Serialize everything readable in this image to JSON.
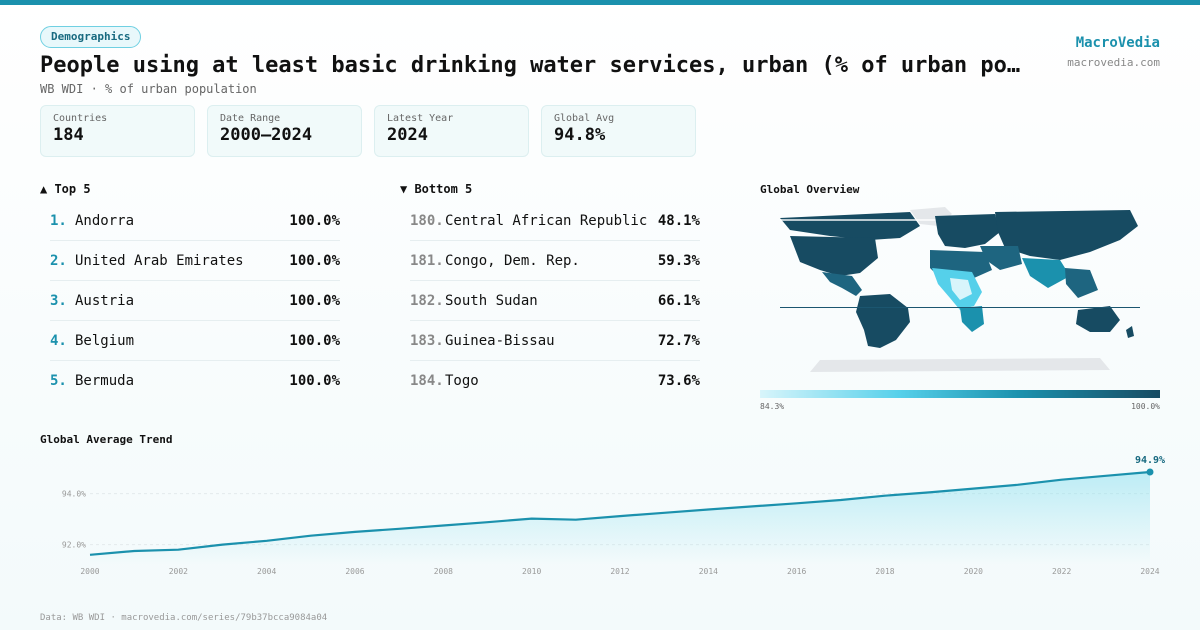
{
  "header": {
    "category": "Demographics",
    "title": "People using at least basic drinking water services, urban (% of urban population)",
    "subtitle": "WB WDI · % of urban population",
    "brand": "MacroVedia",
    "brand_url": "macrovedia.com"
  },
  "stats": [
    {
      "label": "Countries",
      "value": "184"
    },
    {
      "label": "Date Range",
      "value": "2000–2024"
    },
    {
      "label": "Latest Year",
      "value": "2024"
    },
    {
      "label": "Global Avg",
      "value": "94.8%"
    }
  ],
  "top5": {
    "heading": "▲ Top 5",
    "rows": [
      {
        "rank": "1.",
        "name": "Andorra",
        "value": "100.0%"
      },
      {
        "rank": "2.",
        "name": "United Arab Emirates",
        "value": "100.0%"
      },
      {
        "rank": "3.",
        "name": "Austria",
        "value": "100.0%"
      },
      {
        "rank": "4.",
        "name": "Belgium",
        "value": "100.0%"
      },
      {
        "rank": "5.",
        "name": "Bermuda",
        "value": "100.0%"
      }
    ]
  },
  "bottom5": {
    "heading": "▼ Bottom 5",
    "rows": [
      {
        "rank": "180.",
        "name": "Central African Republic",
        "value": "48.1%"
      },
      {
        "rank": "181.",
        "name": "Congo, Dem. Rep.",
        "value": "59.3%"
      },
      {
        "rank": "182.",
        "name": "South Sudan",
        "value": "66.1%"
      },
      {
        "rank": "183.",
        "name": "Guinea-Bissau",
        "value": "72.7%"
      },
      {
        "rank": "184.",
        "name": "Togo",
        "value": "73.6%"
      }
    ]
  },
  "map": {
    "title": "Global Overview",
    "scale_min": "84.3%",
    "scale_max": "100.0%",
    "colors": {
      "high": "#174b62",
      "mid": "#1b91ad",
      "low": "#55d0ea",
      "lowest": "#d8f5fb",
      "nodata": "#e4e7ea"
    }
  },
  "chart_data": {
    "type": "line",
    "title": "Global Average Trend",
    "x": [
      2000,
      2001,
      2002,
      2003,
      2004,
      2005,
      2006,
      2007,
      2008,
      2009,
      2010,
      2011,
      2012,
      2013,
      2014,
      2015,
      2016,
      2017,
      2018,
      2019,
      2020,
      2021,
      2022,
      2023,
      2024
    ],
    "y": [
      91.6,
      91.75,
      91.8,
      92.0,
      92.15,
      92.35,
      92.5,
      92.62,
      92.75,
      92.88,
      93.02,
      92.98,
      93.12,
      93.25,
      93.38,
      93.5,
      93.62,
      93.75,
      93.92,
      94.05,
      94.2,
      94.35,
      94.55,
      94.7,
      94.85
    ],
    "xticks": [
      "2000",
      "2002",
      "2004",
      "2006",
      "2008",
      "2010",
      "2012",
      "2014",
      "2016",
      "2018",
      "2020",
      "2022",
      "2024"
    ],
    "yticks": [
      "92.0%",
      "94.0%"
    ],
    "ylim": [
      91.2,
      95.4
    ],
    "end_label": "94.9%",
    "line_color": "#1b91ad"
  },
  "footer": "Data: WB WDI · macrovedia.com/series/79b37bcca9084a04"
}
